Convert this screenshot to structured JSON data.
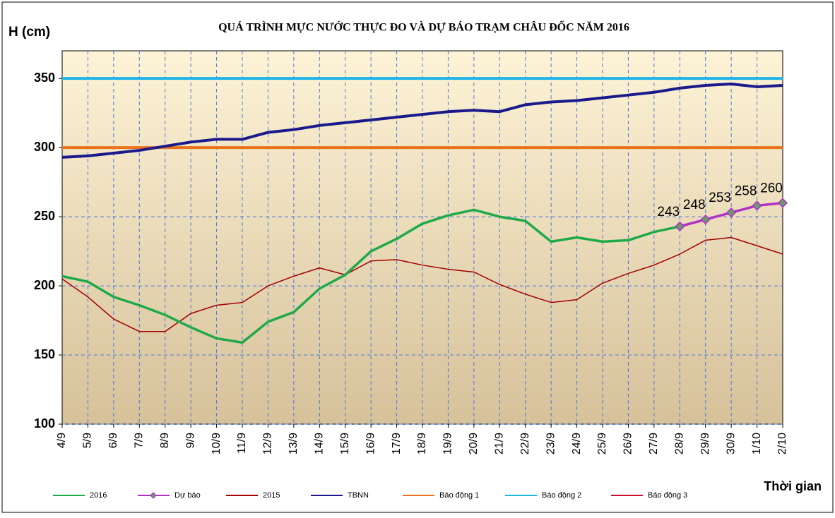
{
  "chart_data": {
    "type": "line",
    "title": "QUÁ TRÌNH MỰC NƯỚC THỰC ĐO VÀ DỰ BÁO TRẠM CHÂU ĐỐC  NĂM 2016",
    "y_label": "H (cm)",
    "x_label": "Thời gian",
    "categories": [
      "4/9",
      "5/9",
      "6/9",
      "7/9",
      "8/9",
      "9/9",
      "10/9",
      "11/9",
      "12/9",
      "13/9",
      "14/9",
      "15/9",
      "16/9",
      "17/9",
      "18/9",
      "19/9",
      "20/9",
      "21/9",
      "22/9",
      "23/9",
      "24/9",
      "25/9",
      "26/9",
      "27/9",
      "28/9",
      "29/9",
      "30/9",
      "1/10",
      "2/10"
    ],
    "ylim": [
      100,
      370
    ],
    "yticks": [
      100,
      150,
      200,
      250,
      300,
      350
    ],
    "grid": true,
    "series": [
      {
        "name": "2016",
        "color": "#1faa4a",
        "values": [
          207,
          203,
          192,
          186,
          179,
          170,
          162,
          159,
          174,
          181,
          198,
          208,
          225,
          234,
          245,
          251,
          255,
          250,
          247,
          232,
          235,
          232,
          233,
          239,
          243,
          null,
          null,
          null,
          null
        ]
      },
      {
        "name": "Dự báo",
        "color": "#b030c8",
        "marker": "diamond",
        "data_labels": true,
        "values": [
          null,
          null,
          null,
          null,
          null,
          null,
          null,
          null,
          null,
          null,
          null,
          null,
          null,
          null,
          null,
          null,
          null,
          null,
          null,
          null,
          null,
          null,
          null,
          null,
          243,
          248,
          253,
          258,
          260
        ]
      },
      {
        "name": "2015",
        "color": "#a00000",
        "values": [
          205,
          192,
          176,
          167,
          167,
          180,
          186,
          188,
          200,
          207,
          213,
          208,
          218,
          219,
          215,
          212,
          210,
          201,
          194,
          188,
          190,
          202,
          209,
          215,
          223,
          233,
          235,
          229,
          223
        ]
      },
      {
        "name": "TBNN",
        "color": "#1a1a8c",
        "values": [
          293,
          294,
          296,
          298,
          301,
          304,
          306,
          306,
          311,
          313,
          316,
          318,
          320,
          322,
          324,
          326,
          327,
          326,
          331,
          333,
          334,
          336,
          338,
          340,
          343,
          345,
          346,
          344,
          345
        ]
      },
      {
        "name": "Báo động 1",
        "color": "#e8731c",
        "values": [
          300,
          300,
          300,
          300,
          300,
          300,
          300,
          300,
          300,
          300,
          300,
          300,
          300,
          300,
          300,
          300,
          300,
          300,
          300,
          300,
          300,
          300,
          300,
          300,
          300,
          300,
          300,
          300,
          300
        ]
      },
      {
        "name": "Báo động 2",
        "color": "#1fb4e8",
        "values": [
          350,
          350,
          350,
          350,
          350,
          350,
          350,
          350,
          350,
          350,
          350,
          350,
          350,
          350,
          350,
          350,
          350,
          350,
          350,
          350,
          350,
          350,
          350,
          350,
          350,
          350,
          350,
          350,
          350
        ]
      },
      {
        "name": "Báo động 3",
        "color": "#c8102e",
        "values": [
          null,
          null,
          null,
          null,
          null,
          null,
          null,
          null,
          null,
          null,
          null,
          null,
          null,
          null,
          null,
          null,
          null,
          null,
          null,
          null,
          null,
          null,
          null,
          null,
          null,
          null,
          null,
          null,
          null
        ]
      }
    ]
  }
}
